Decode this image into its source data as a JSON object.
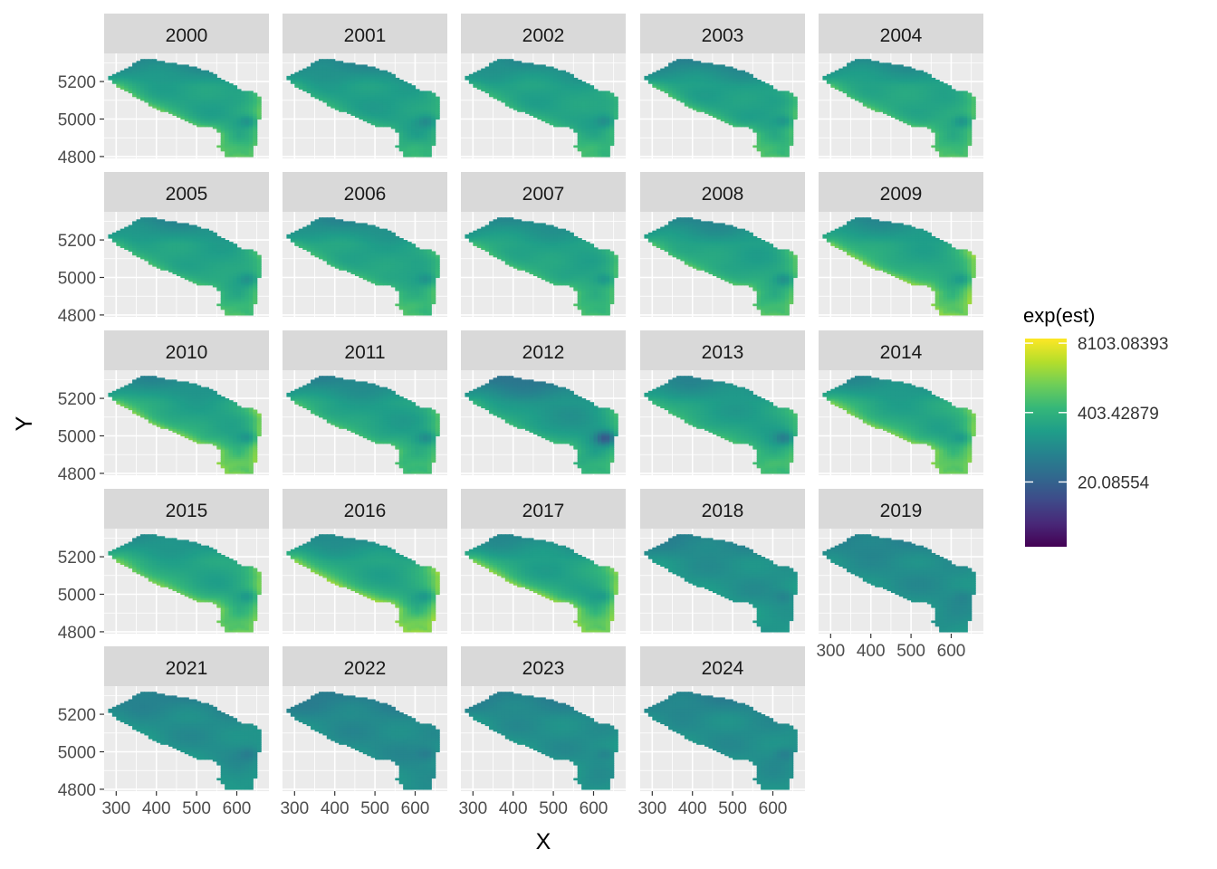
{
  "chart_data": {
    "type": "heatmap",
    "facet_variable": "year",
    "facets": [
      "2000",
      "2001",
      "2002",
      "2003",
      "2004",
      "2005",
      "2006",
      "2007",
      "2008",
      "2009",
      "2010",
      "2011",
      "2012",
      "2013",
      "2014",
      "2015",
      "2016",
      "2017",
      "2018",
      "2019",
      "2021",
      "2022",
      "2023",
      "2024"
    ],
    "xlabel": "X",
    "ylabel": "Y",
    "x_ticks": [
      300,
      400,
      500,
      600
    ],
    "y_ticks": [
      4800,
      5000,
      5200
    ],
    "xlim": [
      270,
      680
    ],
    "ylim": [
      4790,
      5350
    ],
    "legend": {
      "title": "exp(est)",
      "position": "right",
      "colormap": "viridis",
      "log_scale": true,
      "labels": [
        "8103.08393",
        "403.42879",
        "20.08554"
      ],
      "log_values": [
        9,
        6,
        3
      ],
      "range_log": [
        0.2,
        9.2
      ]
    },
    "grid": true,
    "colors": {
      "panel_background": "#ebebeb",
      "strip_background": "#d9d9d9",
      "grid_line": "#ffffff"
    },
    "shape_outline": [
      [
        280,
        5225
      ],
      [
        290,
        5235
      ],
      [
        310,
        5250
      ],
      [
        330,
        5275
      ],
      [
        350,
        5305
      ],
      [
        370,
        5320
      ],
      [
        400,
        5315
      ],
      [
        430,
        5300
      ],
      [
        470,
        5290
      ],
      [
        500,
        5275
      ],
      [
        530,
        5255
      ],
      [
        555,
        5225
      ],
      [
        580,
        5195
      ],
      [
        600,
        5170
      ],
      [
        615,
        5155
      ],
      [
        650,
        5140
      ],
      [
        660,
        5095
      ],
      [
        655,
        5000
      ],
      [
        648,
        4900
      ],
      [
        640,
        4800
      ],
      [
        575,
        4800
      ],
      [
        555,
        4855
      ],
      [
        560,
        4920
      ],
      [
        540,
        4955
      ],
      [
        505,
        4965
      ],
      [
        460,
        5005
      ],
      [
        420,
        5040
      ],
      [
        380,
        5080
      ],
      [
        340,
        5130
      ],
      [
        300,
        5180
      ]
    ],
    "bands": {
      "base_log": 5.2,
      "year_base_offset": [
        0.1,
        0.0,
        0.1,
        0.0,
        0.2,
        0.1,
        0.1,
        0.1,
        0.1,
        0.2,
        0.1,
        0.0,
        -0.3,
        0.0,
        0.2,
        0.2,
        0.2,
        0.1,
        -0.5,
        -0.6,
        -0.6,
        -0.7,
        -0.6,
        -0.6
      ],
      "coastal_highlight": [
        1.5,
        0.8,
        0.9,
        1.4,
        1.3,
        1.2,
        1.2,
        1.3,
        1.5,
        2.2,
        2.2,
        1.4,
        1.3,
        1.2,
        2.0,
        1.8,
        2.2,
        2.2,
        0.3,
        0.2,
        0.3,
        0.2,
        0.3,
        0.2
      ],
      "east_hole": [
        1.2,
        1.0,
        1.0,
        1.0,
        1.2,
        1.0,
        1.0,
        1.0,
        1.2,
        1.0,
        1.2,
        1.2,
        2.6,
        1.4,
        1.0,
        1.0,
        1.0,
        0.8,
        0.6,
        0.4,
        0.6,
        0.6,
        0.6,
        0.6
      ],
      "north_dark": [
        1.0,
        1.0,
        0.9,
        1.1,
        1.0,
        1.0,
        1.0,
        0.9,
        1.1,
        1.0,
        1.0,
        1.1,
        1.4,
        1.0,
        1.0,
        0.9,
        1.1,
        1.0,
        0.6,
        0.5,
        0.6,
        0.6,
        0.6,
        0.6
      ],
      "south_bright": [
        1.2,
        1.0,
        1.0,
        1.3,
        1.1,
        1.0,
        1.2,
        1.1,
        1.3,
        1.1,
        1.8,
        1.3,
        1.1,
        1.2,
        1.3,
        1.2,
        1.6,
        1.1,
        0.2,
        0.0,
        0.0,
        0.0,
        0.0,
        0.0
      ]
    }
  }
}
